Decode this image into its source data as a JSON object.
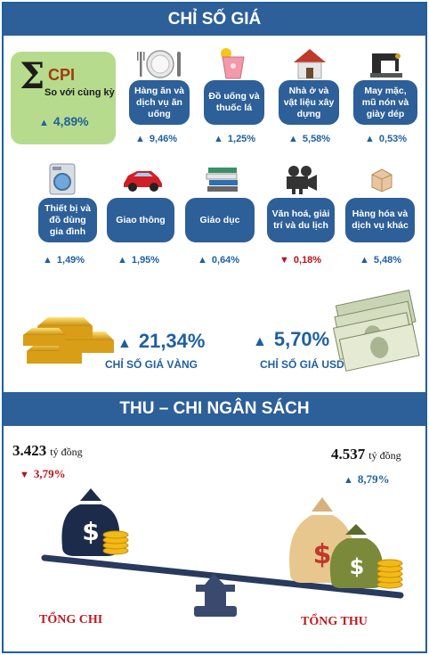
{
  "price_section": {
    "title": "CHỈ SỐ GIÁ",
    "cpi": {
      "label": "CPI",
      "sublabel": "So với cùng kỳ",
      "value": "4,89%",
      "direction": "up"
    },
    "items": [
      {
        "label": "Hàng ăn và dịch vụ ăn uống",
        "value": "9,46%",
        "direction": "up",
        "icon": "tableware-icon"
      },
      {
        "label": "Đồ uống và thuốc lá",
        "value": "1,25%",
        "direction": "up",
        "icon": "drink-icon"
      },
      {
        "label": "Nhà ở và vật liệu xây dựng",
        "value": "5,58%",
        "direction": "up",
        "icon": "house-icon"
      },
      {
        "label": "May mặc, mũ nón và giày dép",
        "value": "0,53%",
        "direction": "up",
        "icon": "sewing-machine-icon"
      },
      {
        "label": "Thiết bị và đồ dùng gia đình",
        "value": "1,49%",
        "direction": "up",
        "icon": "washing-machine-icon"
      },
      {
        "label": "Giao thông",
        "value": "1,95%",
        "direction": "up",
        "icon": "car-icon"
      },
      {
        "label": "Giáo dục",
        "value": "0,64%",
        "direction": "up",
        "icon": "books-icon"
      },
      {
        "label": "Văn hoá, giải trí và du lịch",
        "value": "0,18%",
        "direction": "down",
        "icon": "film-camera-icon"
      },
      {
        "label": "Hàng hóa và dịch vụ khác",
        "value": "5,48%",
        "direction": "up",
        "icon": "box-icon"
      }
    ],
    "gold": {
      "value": "21,34%",
      "label": "CHỈ SỐ GIÁ VÀNG",
      "direction": "up"
    },
    "usd": {
      "value": "5,70%",
      "label": "CHỈ SỐ GIÁ USD",
      "direction": "up"
    }
  },
  "budget_section": {
    "title": "THU – CHI NGÂN SÁCH",
    "spending": {
      "amount": "3.423",
      "unit": "tỷ đồng",
      "change": "3,79%",
      "direction": "down",
      "label": "TỔNG CHI"
    },
    "revenue": {
      "amount": "4.537",
      "unit": "tỷ đồng",
      "change": "8,79%",
      "direction": "up",
      "label": "TỔNG THU"
    }
  },
  "colors": {
    "banner": "#2d5f98",
    "accent": "#1f5f9f",
    "down": "#b5121b",
    "cpi_box": "#b6db8d",
    "total_label": "#c0191f"
  }
}
